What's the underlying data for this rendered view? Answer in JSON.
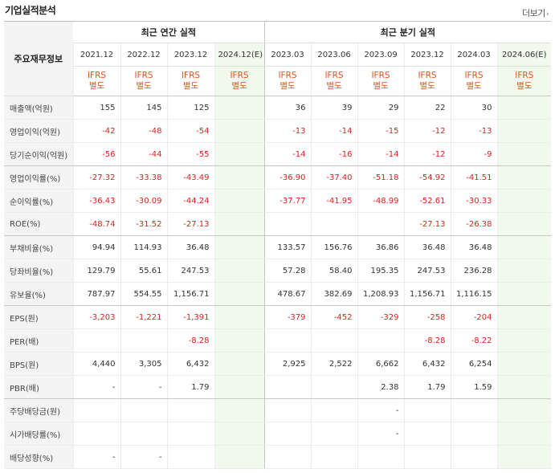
{
  "header": {
    "title": "기업실적분석",
    "more_label": "더보기"
  },
  "table": {
    "row_header_label": "주요재무정보",
    "annual_group_label": "최근 연간 실적",
    "quarterly_group_label": "최근 분기 실적",
    "annual_periods": [
      "2021.12",
      "2022.12",
      "2023.12",
      "2024.12(E)"
    ],
    "quarterly_periods": [
      "2023.03",
      "2023.06",
      "2023.09",
      "2023.12",
      "2024.03",
      "2024.06(E)"
    ],
    "standard_label": "IFRS\n별도",
    "rows": [
      {
        "label": "매출액(억원)",
        "annual": [
          "155",
          "145",
          "125",
          ""
        ],
        "quarterly": [
          "36",
          "39",
          "29",
          "22",
          "30",
          ""
        ]
      },
      {
        "label": "영업이익(억원)",
        "annual": [
          "-42",
          "-48",
          "-54",
          ""
        ],
        "quarterly": [
          "-13",
          "-14",
          "-15",
          "-12",
          "-13",
          ""
        ]
      },
      {
        "label": "당기순이익(억원)",
        "annual": [
          "-56",
          "-44",
          "-55",
          ""
        ],
        "quarterly": [
          "-14",
          "-16",
          "-14",
          "-12",
          "-9",
          ""
        ]
      },
      {
        "label": "영업이익률(%)",
        "annual": [
          "-27.32",
          "-33.38",
          "-43.49",
          ""
        ],
        "quarterly": [
          "-36.90",
          "-37.40",
          "-51.18",
          "-54.92",
          "-41.51",
          ""
        ]
      },
      {
        "label": "순이익률(%)",
        "annual": [
          "-36.43",
          "-30.09",
          "-44.24",
          ""
        ],
        "quarterly": [
          "-37.77",
          "-41.95",
          "-48.99",
          "-52.61",
          "-30.33",
          ""
        ]
      },
      {
        "label": "ROE(%)",
        "annual": [
          "-48.74",
          "-31.52",
          "-27.13",
          ""
        ],
        "quarterly": [
          "",
          "",
          "",
          "-27.13",
          "-26.38",
          ""
        ]
      },
      {
        "label": "부채비율(%)",
        "annual": [
          "94.94",
          "114.93",
          "36.48",
          ""
        ],
        "quarterly": [
          "133.57",
          "156.76",
          "36.86",
          "36.48",
          "36.48",
          ""
        ]
      },
      {
        "label": "당좌비율(%)",
        "annual": [
          "129.79",
          "55.61",
          "247.53",
          ""
        ],
        "quarterly": [
          "57.28",
          "58.40",
          "195.35",
          "247.53",
          "236.28",
          ""
        ]
      },
      {
        "label": "유보율(%)",
        "annual": [
          "787.97",
          "554.55",
          "1,156.71",
          ""
        ],
        "quarterly": [
          "478.67",
          "382.69",
          "1,208.93",
          "1,156.71",
          "1,116.15",
          ""
        ]
      },
      {
        "label": "EPS(원)",
        "annual": [
          "-3,203",
          "-1,221",
          "-1,391",
          ""
        ],
        "quarterly": [
          "-379",
          "-452",
          "-329",
          "-258",
          "-204",
          ""
        ]
      },
      {
        "label": "PER(배)",
        "annual": [
          "",
          "",
          "-8.28",
          ""
        ],
        "quarterly": [
          "",
          "",
          "",
          "-8.28",
          "-8.22",
          ""
        ]
      },
      {
        "label": "BPS(원)",
        "annual": [
          "4,440",
          "3,305",
          "6,432",
          ""
        ],
        "quarterly": [
          "2,925",
          "2,522",
          "6,662",
          "6,432",
          "6,254",
          ""
        ]
      },
      {
        "label": "PBR(배)",
        "annual": [
          "-",
          "-",
          "1.79",
          ""
        ],
        "quarterly": [
          "",
          "",
          "2.38",
          "1.79",
          "1.59",
          ""
        ]
      },
      {
        "label": "주당배당금(원)",
        "annual": [
          "",
          "",
          "",
          ""
        ],
        "quarterly": [
          "",
          "",
          "-",
          "",
          "",
          ""
        ]
      },
      {
        "label": "시가배당률(%)",
        "annual": [
          "",
          "",
          "",
          ""
        ],
        "quarterly": [
          "",
          "",
          "-",
          "",
          "",
          ""
        ]
      },
      {
        "label": "배당성향(%)",
        "annual": [
          "-",
          "-",
          "",
          ""
        ],
        "quarterly": [
          "",
          "",
          "",
          "",
          "",
          ""
        ]
      }
    ]
  },
  "colors": {
    "negative": "#e0201c",
    "standard": "#e0521c",
    "estimate_bg": "#f1f9ec",
    "estimate_text": "#3d8c2a"
  }
}
